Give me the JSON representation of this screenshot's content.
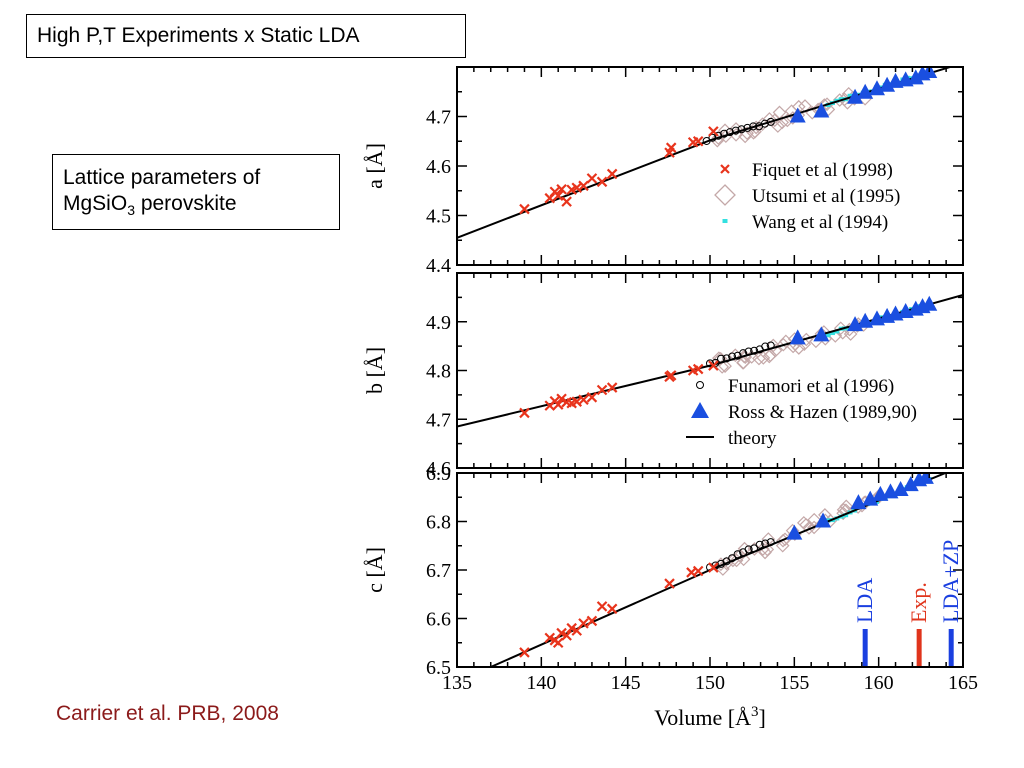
{
  "slide": {
    "title": "High P,T Experiments x Static LDA",
    "note_line1": "Lattice parameters of",
    "note_formula_base": "MgSiO",
    "note_formula_sub": "3",
    "note_formula_rest": " perovskite",
    "citation": "Carrier et al. PRB, 2008"
  },
  "chart_data": {
    "type": "scatter",
    "xlabel": "Volume [Å3]",
    "xlabel_base": "Volume [",
    "xlabel_unit": "Å",
    "xlabel_sup": "3",
    "xlabel_end": "]",
    "xlim": [
      135,
      165
    ],
    "xticks": [
      "135",
      "140",
      "145",
      "150",
      "155",
      "160",
      "165"
    ],
    "colors": {
      "fiquet": "#e8341c",
      "utsumi": "#c4a8a8",
      "wang": "#33e0e0",
      "funamori": "#000000",
      "ross": "#1a4fe0",
      "theory": "#000000",
      "lda": "#1a3fe0",
      "exp": "#e0341c",
      "ldazp": "#1a3fe0"
    },
    "panels": [
      {
        "ylabel": "a [Å]",
        "ylim": [
          4.4,
          4.8
        ],
        "yticks": [
          "4.4",
          "4.5",
          "4.6",
          "4.7"
        ],
        "theory": {
          "x": [
            135,
            150,
            165
          ],
          "y": [
            4.455,
            4.652,
            4.808
          ]
        },
        "fiquet": {
          "x": [
            139,
            140.5,
            140.8,
            141.0,
            141.2,
            141.5,
            141.8,
            142.1,
            142.5,
            143.0,
            143.6,
            144.2,
            147.6,
            147.7,
            149.0,
            149.3,
            150.2
          ],
          "y": [
            4.513,
            4.535,
            4.548,
            4.54,
            4.553,
            4.528,
            4.552,
            4.556,
            4.56,
            4.575,
            4.568,
            4.584,
            4.627,
            4.637,
            4.648,
            4.65,
            4.67
          ]
        },
        "utsumi": {
          "x0": 150.5,
          "x1": 159,
          "y0": 4.655,
          "y1": 4.745,
          "n": 36
        },
        "wang": {
          "x0": 157,
          "x1": 163,
          "y0": 4.725,
          "y1": 4.79,
          "n": 24
        },
        "funamori": {
          "x0": 149.8,
          "x1": 153.6,
          "y0": 4.652,
          "y1": 4.69,
          "n": 12
        },
        "ross": {
          "x": [
            155.2,
            156.6,
            158.6,
            159.2,
            159.9,
            160.5,
            161.0,
            161.6,
            162.2,
            162.6,
            163.0
          ],
          "y": [
            4.7,
            4.71,
            4.738,
            4.748,
            4.755,
            4.762,
            4.77,
            4.773,
            4.777,
            4.785,
            4.79
          ]
        },
        "legend": [
          {
            "key": "fiquet",
            "label": "Fiquet et al (1998)"
          },
          {
            "key": "utsumi",
            "label": "Utsumi et al (1995)"
          },
          {
            "key": "wang",
            "label": "Wang et al (1994)"
          }
        ]
      },
      {
        "ylabel": "b [Å]",
        "ylim": [
          4.6,
          5.0
        ],
        "yticks": [
          "4.6",
          "4.7",
          "4.8",
          "4.9"
        ],
        "theory": {
          "x": [
            135,
            150,
            165
          ],
          "y": [
            4.685,
            4.81,
            4.955
          ]
        },
        "fiquet": {
          "x": [
            139,
            140.5,
            140.8,
            141.0,
            141.2,
            141.5,
            141.8,
            142.1,
            142.5,
            143.0,
            143.6,
            144.2,
            147.6,
            147.7,
            149.0,
            149.3,
            150.2
          ],
          "y": [
            4.713,
            4.728,
            4.737,
            4.73,
            4.742,
            4.735,
            4.733,
            4.736,
            4.74,
            4.745,
            4.76,
            4.765,
            4.787,
            4.79,
            4.8,
            4.803,
            4.81
          ]
        },
        "utsumi": {
          "x0": 150.5,
          "x1": 159,
          "y0": 4.815,
          "y1": 4.885,
          "n": 36
        },
        "wang": {
          "x0": 157,
          "x1": 163,
          "y0": 4.875,
          "y1": 4.935,
          "n": 24
        },
        "funamori": {
          "x0": 150,
          "x1": 153.6,
          "y0": 4.815,
          "y1": 4.85,
          "n": 12
        },
        "ross": {
          "x": [
            155.2,
            156.6,
            158.6,
            159.2,
            159.9,
            160.5,
            161.0,
            161.6,
            162.2,
            162.6,
            163.0
          ],
          "y": [
            4.866,
            4.872,
            4.893,
            4.9,
            4.905,
            4.91,
            4.915,
            4.92,
            4.925,
            4.93,
            4.935
          ]
        },
        "legend": [
          {
            "key": "funamori",
            "label": "Funamori et al (1996)"
          },
          {
            "key": "ross",
            "label": "Ross & Hazen (1989,90)"
          },
          {
            "key": "theory",
            "label": "theory"
          }
        ]
      },
      {
        "ylabel": "c [Å]",
        "ylim": [
          6.5,
          6.9
        ],
        "yticks": [
          "6.5",
          "6.6",
          "6.7",
          "6.8",
          "6.9"
        ],
        "theory": {
          "x": [
            137,
            150,
            165
          ],
          "y": [
            6.5,
            6.7,
            6.915
          ]
        },
        "fiquet": {
          "x": [
            139,
            140.5,
            140.8,
            141.0,
            141.2,
            141.5,
            141.8,
            142.1,
            142.5,
            143.0,
            143.6,
            144.2,
            147.6,
            148.9,
            149.3,
            150.2
          ],
          "y": [
            6.53,
            6.56,
            6.555,
            6.55,
            6.57,
            6.565,
            6.58,
            6.575,
            6.59,
            6.595,
            6.625,
            6.62,
            6.672,
            6.695,
            6.698,
            6.705
          ]
        },
        "utsumi": {
          "x0": 150.5,
          "x1": 160,
          "y0": 6.71,
          "y1": 6.85,
          "n": 36
        },
        "wang": {
          "x0": 157,
          "x1": 163,
          "y0": 6.8,
          "y1": 6.89,
          "n": 24
        },
        "funamori": {
          "x0": 150,
          "x1": 153.6,
          "y0": 6.705,
          "y1": 6.76,
          "n": 12
        },
        "ross": {
          "x": [
            155.0,
            156.7,
            158.8,
            159.5,
            160.1,
            160.7,
            161.3,
            161.9,
            162.4,
            162.8
          ],
          "y": [
            6.775,
            6.8,
            6.838,
            6.845,
            6.855,
            6.86,
            6.865,
            6.875,
            6.885,
            6.89
          ]
        },
        "markers": [
          {
            "key": "lda",
            "label": "LDA",
            "x": 159.2
          },
          {
            "key": "exp",
            "label": "Exp.",
            "x": 162.4
          },
          {
            "key": "ldazp",
            "label": "LDA+ZP",
            "x": 164.3
          }
        ]
      }
    ]
  }
}
